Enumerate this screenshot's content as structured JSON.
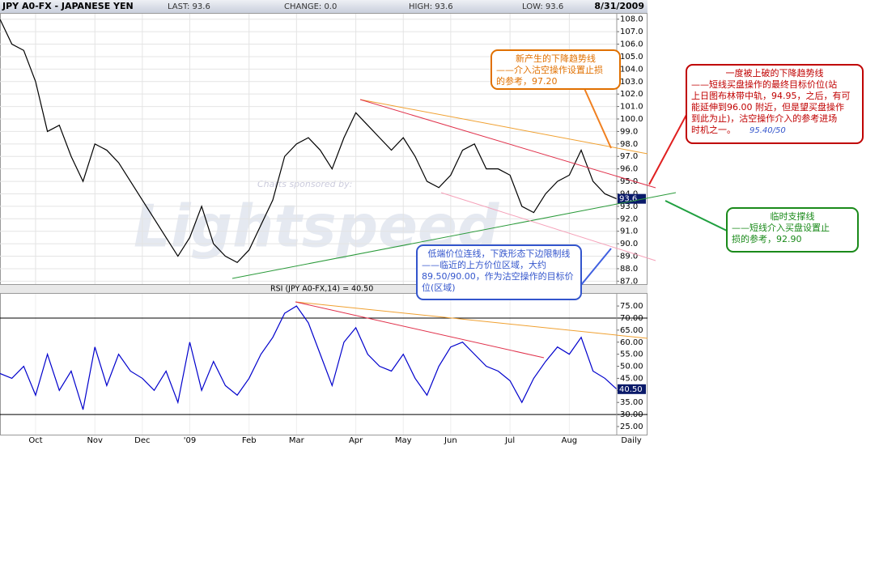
{
  "header": {
    "title": "JPY A0-FX - JAPANESE YEN",
    "last": "LAST: 93.6",
    "change": "CHANGE: 0.0",
    "high": "HIGH: 93.6",
    "low": "LOW: 93.6",
    "date": "8/31/2009"
  },
  "watermark": {
    "sponsor": "Charts sponsored by:",
    "brand": "Lightspeed"
  },
  "chart_data": [
    {
      "type": "line",
      "color": "#000000",
      "grid": true,
      "values": [
        108.0,
        106,
        105.5,
        103,
        99,
        99.5,
        97,
        95,
        98,
        97.5,
        96.5,
        95,
        93.5,
        92,
        90.5,
        89,
        90.5,
        93,
        90,
        89,
        88.5,
        89.5,
        91.5,
        93.5,
        97,
        98,
        98.5,
        97.5,
        96,
        98.5,
        100.5,
        99.5,
        98.5,
        97.5,
        98.5,
        97,
        95,
        94.5,
        95.5,
        97.5,
        98,
        96,
        96,
        95.5,
        93,
        92.5,
        94,
        95,
        95.5,
        97.5,
        95,
        94,
        93.6
      ],
      "ylim": [
        86.7,
        108.5
      ],
      "yticks": [
        {
          "value": 87,
          "label": "87.0"
        },
        {
          "value": 88,
          "label": "88.0"
        },
        {
          "value": 89,
          "label": "89.0"
        },
        {
          "value": 90,
          "label": "90.0"
        },
        {
          "value": 91,
          "label": "91.0"
        },
        {
          "value": 92,
          "label": "92.0"
        },
        {
          "value": 93,
          "label": "93.0"
        },
        {
          "value": 94,
          "label": "94.0"
        },
        {
          "value": 95,
          "label": "95.0"
        },
        {
          "value": 96,
          "label": "96.0"
        },
        {
          "value": 97,
          "label": "97.0"
        },
        {
          "value": 98,
          "label": "98.0"
        },
        {
          "value": 99,
          "label": "99.0"
        },
        {
          "value": 100,
          "label": "100.0"
        },
        {
          "value": 101,
          "label": "101.0"
        },
        {
          "value": 102,
          "label": "102.0"
        },
        {
          "value": 103,
          "label": "103.0"
        },
        {
          "value": 104,
          "label": "104.0"
        },
        {
          "value": 105,
          "label": "105.0"
        },
        {
          "value": 106,
          "label": "106.0"
        },
        {
          "value": 107,
          "label": "107.0"
        },
        {
          "value": 108,
          "label": "108.0"
        }
      ],
      "last": 93.6
    },
    {
      "type": "line",
      "title": "RSI (JPY A0-FX,14) = 40.50",
      "color": "#0000cc",
      "grid": false,
      "categories": [
        null,
        null,
        null,
        "Oct",
        null,
        null,
        null,
        null,
        "Nov",
        null,
        null,
        null,
        "Dec",
        null,
        null,
        null,
        "'09",
        null,
        null,
        null,
        null,
        "Feb",
        null,
        null,
        null,
        "Mar",
        null,
        null,
        null,
        null,
        "Apr",
        null,
        null,
        null,
        "May",
        null,
        null,
        null,
        "Jun",
        null,
        null,
        null,
        null,
        "Jul",
        null,
        null,
        null,
        null,
        "Aug",
        null,
        null,
        null,
        null
      ],
      "period_label": "Daily",
      "values": [
        47,
        45,
        50,
        38,
        55,
        40,
        48,
        32,
        58,
        42,
        55,
        48,
        45,
        40,
        48,
        35,
        60,
        40,
        52,
        42,
        38,
        45,
        55,
        62,
        72,
        75,
        68,
        55,
        42,
        60,
        66,
        55,
        50,
        48,
        55,
        45,
        38,
        50,
        58,
        60,
        55,
        50,
        48,
        44,
        35,
        45,
        52,
        58,
        55,
        62,
        48,
        45,
        40.5
      ],
      "ylim": [
        21.3,
        80.4
      ],
      "yticks": [
        {
          "value": 25,
          "label": "25.00"
        },
        {
          "value": 30,
          "label": "30.00"
        },
        {
          "value": 35,
          "label": "35.00"
        },
        {
          "value": 40,
          "label": "40.00"
        },
        {
          "value": 45,
          "label": "45.00"
        },
        {
          "value": 50,
          "label": "50.00"
        },
        {
          "value": 55,
          "label": "55.00"
        },
        {
          "value": 60,
          "label": "60.00"
        },
        {
          "value": 65,
          "label": "65.00"
        },
        {
          "value": 70,
          "label": "70.00"
        },
        {
          "value": 75,
          "label": "75.00"
        }
      ],
      "hlines": [
        70,
        30
      ],
      "last": {
        "value": 40.5,
        "label": "40.50"
      }
    }
  ],
  "annotations": [
    {
      "color": "#e07000",
      "lines": [
        "新产生的下降趋势线",
        "——介入沽空操作设置止损",
        "的参考，97.20"
      ]
    },
    {
      "color": "#c00000",
      "lines": [
        "一度被上破的下降趋势线",
        "——短线买盘操作的最终目标价位(站",
        "上日图布林带中轨，94.95，之后，有可",
        "能延伸到96.00 附近，但是望买盘操作",
        "到此为止)，沽空操作介入的参考进场",
        "时机之一。"
      ],
      "highlight": "95.40/50"
    },
    {
      "color": "#1a8a1a",
      "lines": [
        "临时支撑线",
        "——短线介入买盘设置止",
        "损的参考，92.90"
      ]
    },
    {
      "color": "#3355cc",
      "lines": [
        "低端价位连线，下跌形态下边限制线",
        "——临近的上方价位区域，大约",
        "89.50/90.00，作为沽空操作的目标价",
        "位(区域)"
      ]
    }
  ]
}
